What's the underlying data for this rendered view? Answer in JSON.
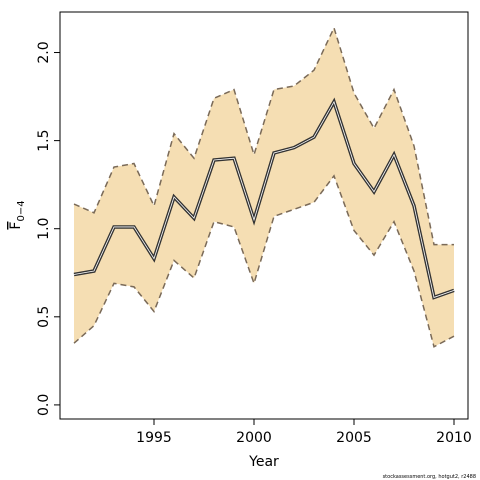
{
  "chart_data": {
    "type": "line-band",
    "xlabel": "Year",
    "ylabel_main": "F",
    "ylabel_sub": "0−4",
    "footnote": "stockassessment.org, hotgut2, r2488",
    "x": [
      1991,
      1992,
      1993,
      1994,
      1995,
      1996,
      1997,
      1998,
      1999,
      2000,
      2001,
      2002,
      2003,
      2004,
      2005,
      2006,
      2007,
      2008,
      2009,
      2010
    ],
    "values": [
      0.74,
      0.76,
      1.01,
      1.01,
      0.83,
      1.18,
      1.06,
      1.39,
      1.4,
      1.05,
      1.43,
      1.46,
      1.52,
      1.72,
      1.37,
      1.21,
      1.42,
      1.13,
      0.61,
      0.65
    ],
    "upper": [
      1.14,
      1.09,
      1.35,
      1.37,
      1.13,
      1.54,
      1.4,
      1.74,
      1.79,
      1.42,
      1.79,
      1.81,
      1.9,
      2.14,
      1.77,
      1.57,
      1.79,
      1.47,
      0.91,
      0.91
    ],
    "lower": [
      0.35,
      0.45,
      0.69,
      0.67,
      0.53,
      0.82,
      0.72,
      1.04,
      1.01,
      0.69,
      1.07,
      1.11,
      1.15,
      1.3,
      0.99,
      0.85,
      1.04,
      0.76,
      0.33,
      0.39
    ],
    "line_color": "#333333",
    "band_color": "#f5deb3",
    "band_edge_color": "#7a6a58",
    "xlim": [
      1990.3,
      2010.7
    ],
    "ylim": [
      -0.08,
      2.23
    ],
    "xticks": [
      1995,
      2000,
      2005,
      2010
    ],
    "yticks": [
      {
        "value": 0,
        "label": "0.0"
      },
      0.5,
      {
        "value": 1,
        "label": "1.0"
      },
      1.5,
      {
        "value": 2,
        "label": "2.0"
      }
    ]
  }
}
